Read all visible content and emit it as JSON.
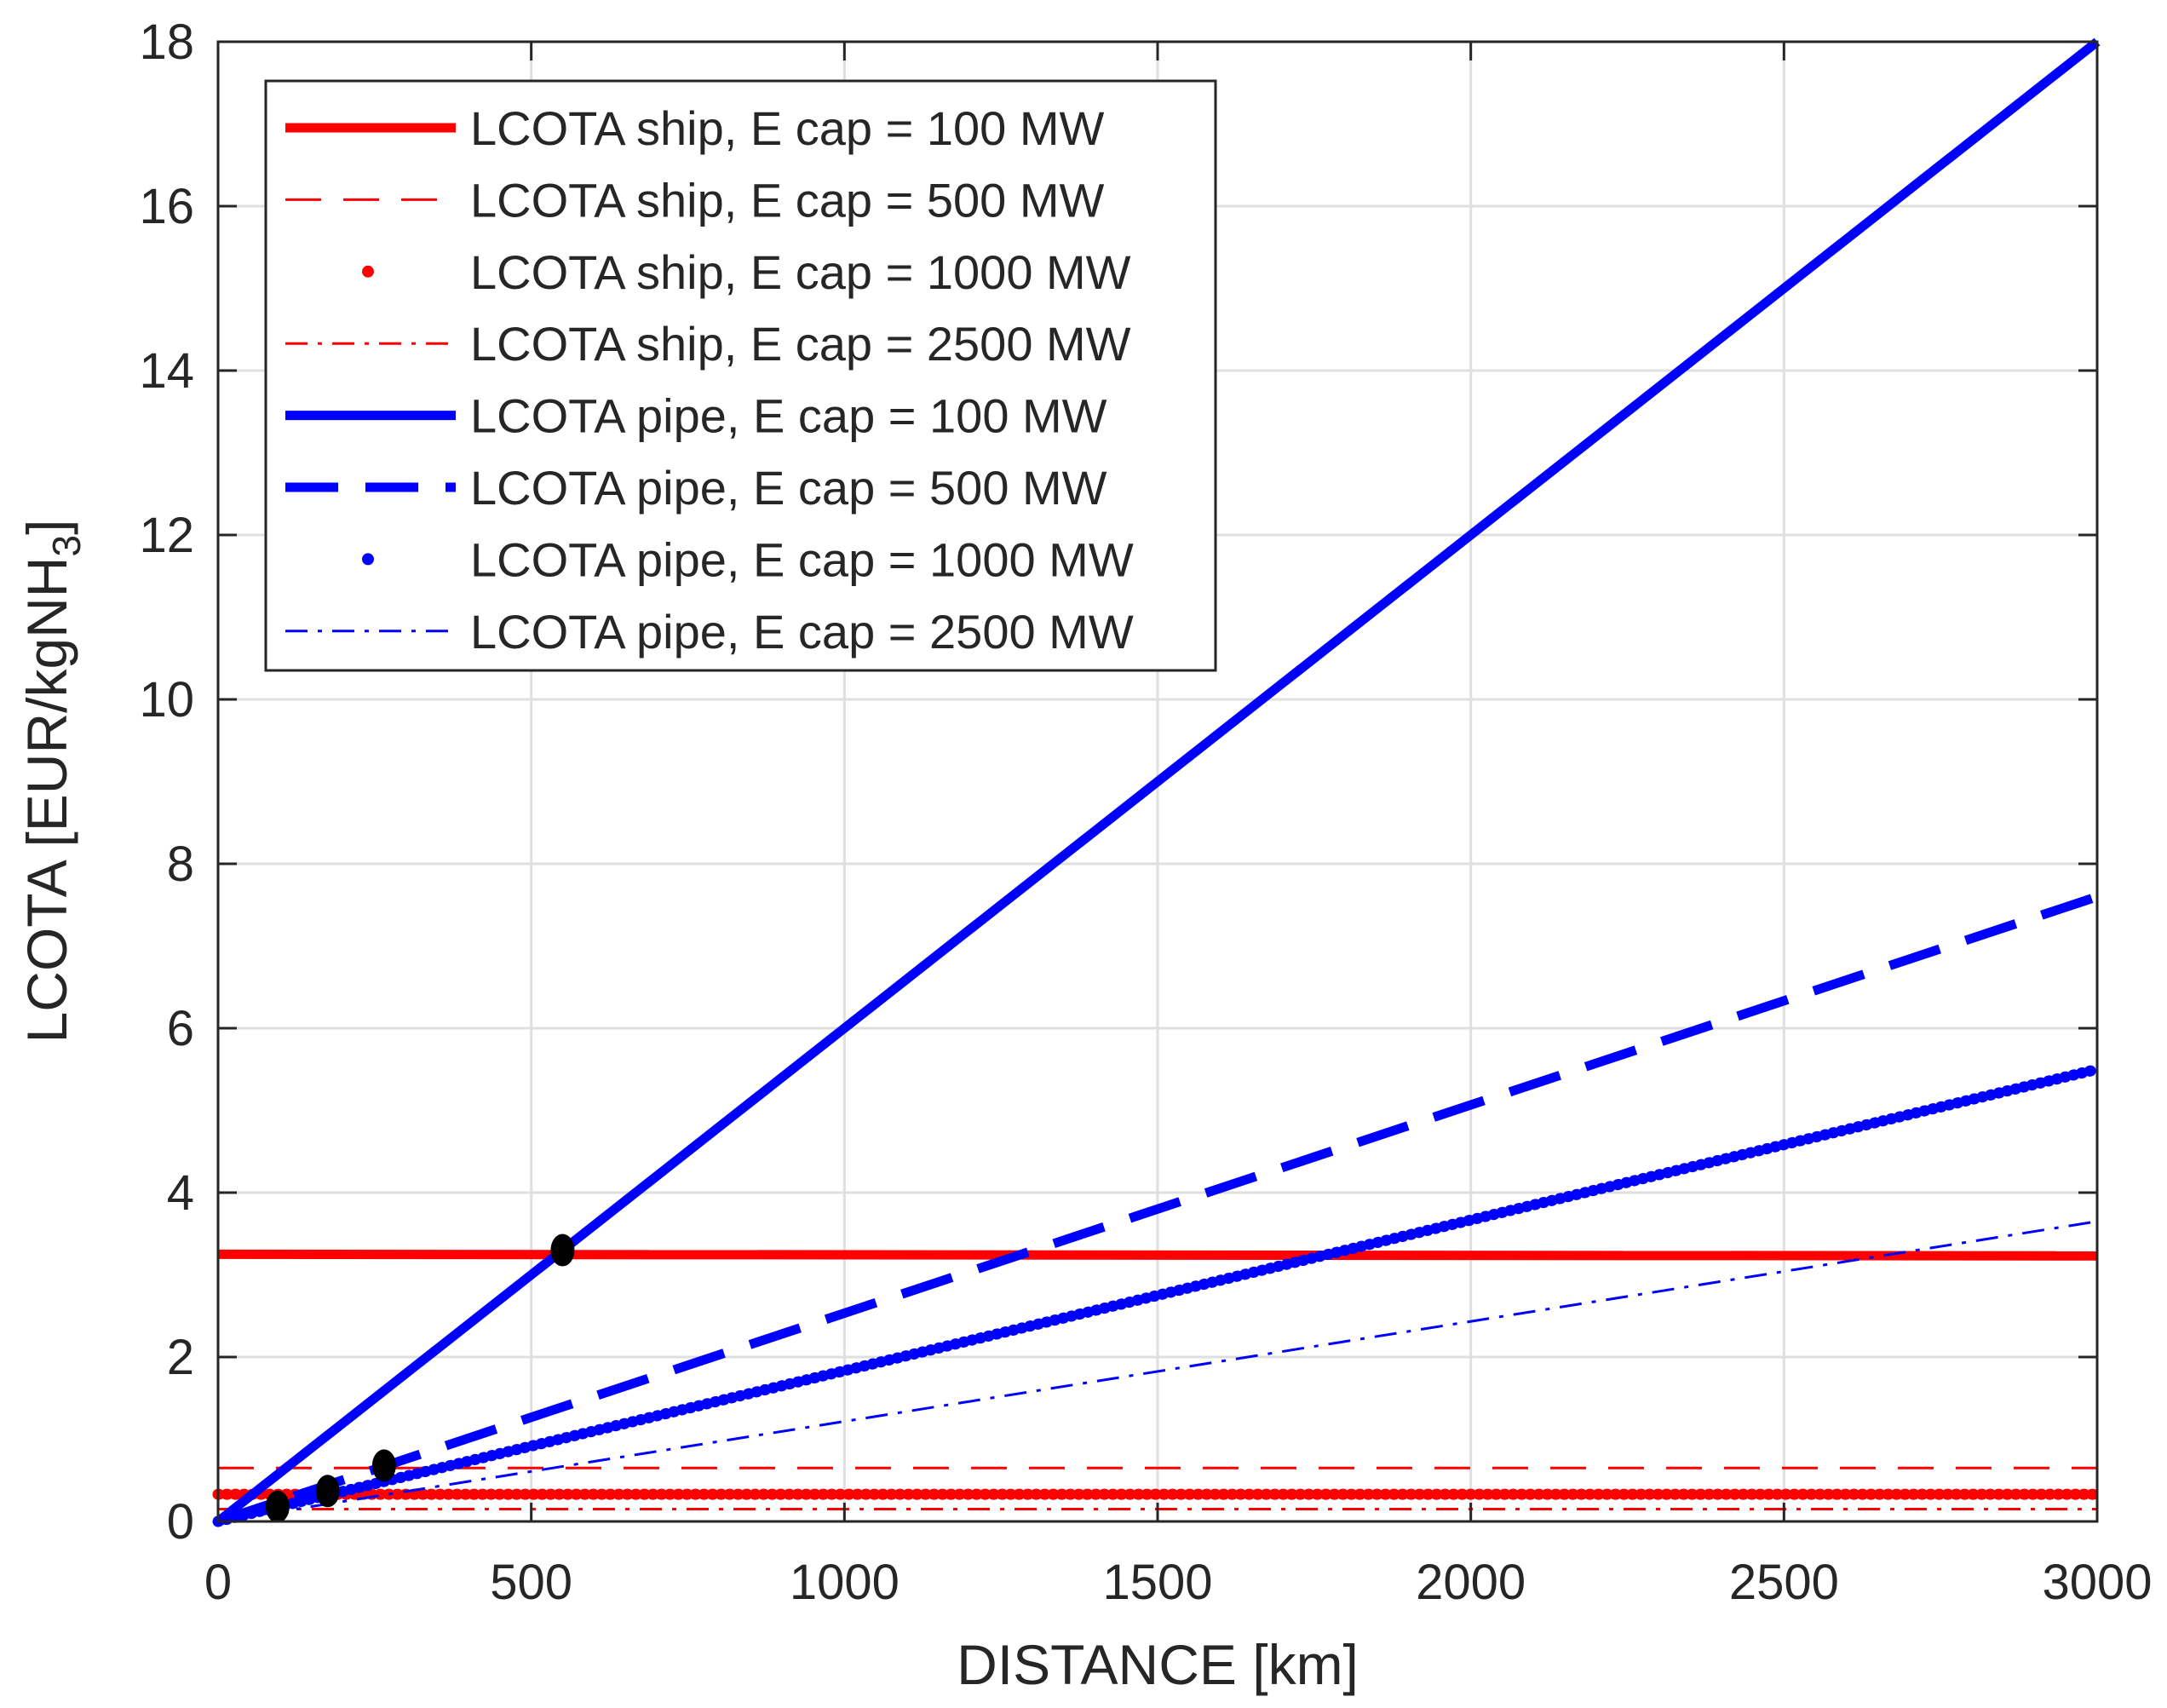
{
  "chart_data": {
    "type": "line",
    "xlabel": "DISTANCE [km]",
    "ylabel_main": "LCOTA [EUR/kgNH",
    "ylabel_subscript": "3",
    "ylabel_close": "]",
    "xlim": [
      0,
      3000
    ],
    "ylim": [
      0,
      18
    ],
    "xticks": [
      0,
      500,
      1000,
      1500,
      2000,
      2500,
      3000
    ],
    "yticks": [
      0,
      2,
      4,
      6,
      8,
      10,
      12,
      14,
      16,
      18
    ],
    "grid": true,
    "legend_position": "top-left",
    "series": [
      {
        "name": "LCOTA ship, E cap = 100 MW",
        "color": "#ff0000",
        "style": "solid",
        "weight": "thick",
        "x": [
          0,
          3000
        ],
        "y": [
          3.25,
          3.23
        ]
      },
      {
        "name": "LCOTA ship, E cap = 500 MW",
        "color": "#ff0000",
        "style": "dashed",
        "weight": "thin",
        "x": [
          0,
          3000
        ],
        "y": [
          0.65,
          0.65
        ]
      },
      {
        "name": "LCOTA ship, E cap = 1000 MW",
        "color": "#ff0000",
        "style": "dotted",
        "weight": "thick",
        "x": [
          0,
          3000
        ],
        "y": [
          0.33,
          0.33
        ]
      },
      {
        "name": "LCOTA ship, E cap = 2500 MW",
        "color": "#ff0000",
        "style": "dashdot",
        "weight": "thin",
        "x": [
          0,
          3000
        ],
        "y": [
          0.15,
          0.15
        ]
      },
      {
        "name": "LCOTA pipe, E cap = 100 MW",
        "color": "#0000ff",
        "style": "solid",
        "weight": "thick",
        "x": [
          0,
          3000
        ],
        "y": [
          0,
          18
        ]
      },
      {
        "name": "LCOTA pipe, E cap = 500 MW",
        "color": "#0000ff",
        "style": "dashed",
        "weight": "thick",
        "x": [
          0,
          3000
        ],
        "y": [
          0,
          7.6
        ]
      },
      {
        "name": "LCOTA pipe, E cap = 1000 MW",
        "color": "#0000ff",
        "style": "dotted",
        "weight": "thick",
        "x": [
          0,
          3000
        ],
        "y": [
          0,
          5.5
        ]
      },
      {
        "name": "LCOTA pipe, E cap = 2500 MW",
        "color": "#0000ff",
        "style": "dashdot",
        "weight": "thin",
        "x": [
          0,
          3000
        ],
        "y": [
          0,
          3.65
        ]
      }
    ],
    "intersections": [
      {
        "x": 550,
        "y": 3.3
      },
      {
        "x": 265,
        "y": 0.68
      },
      {
        "x": 175,
        "y": 0.37
      },
      {
        "x": 95,
        "y": 0.18
      }
    ]
  }
}
